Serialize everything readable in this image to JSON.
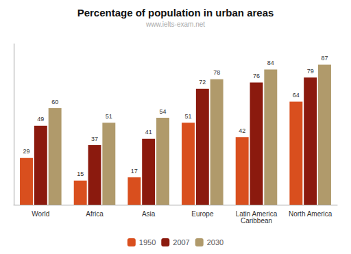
{
  "chart_data": {
    "type": "bar",
    "title": "Percentage of population in urban areas",
    "subtitle": "www.ielts-exam.net",
    "categories": [
      "World",
      "Africa",
      "Asia",
      "Europe",
      "Latin America\nCaribbean",
      "North America"
    ],
    "series": [
      {
        "name": "1950",
        "color": "#d94f1e",
        "values": [
          29,
          15,
          17,
          51,
          42,
          64
        ]
      },
      {
        "name": "2007",
        "color": "#8b1a0e",
        "values": [
          49,
          37,
          41,
          72,
          76,
          79
        ]
      },
      {
        "name": "2030",
        "color": "#b09a6b",
        "values": [
          60,
          51,
          54,
          78,
          84,
          87
        ]
      }
    ],
    "ylim": [
      0,
      100
    ],
    "grid": false,
    "legend": "bottom",
    "data_labels": true,
    "tick_labels": "x"
  }
}
